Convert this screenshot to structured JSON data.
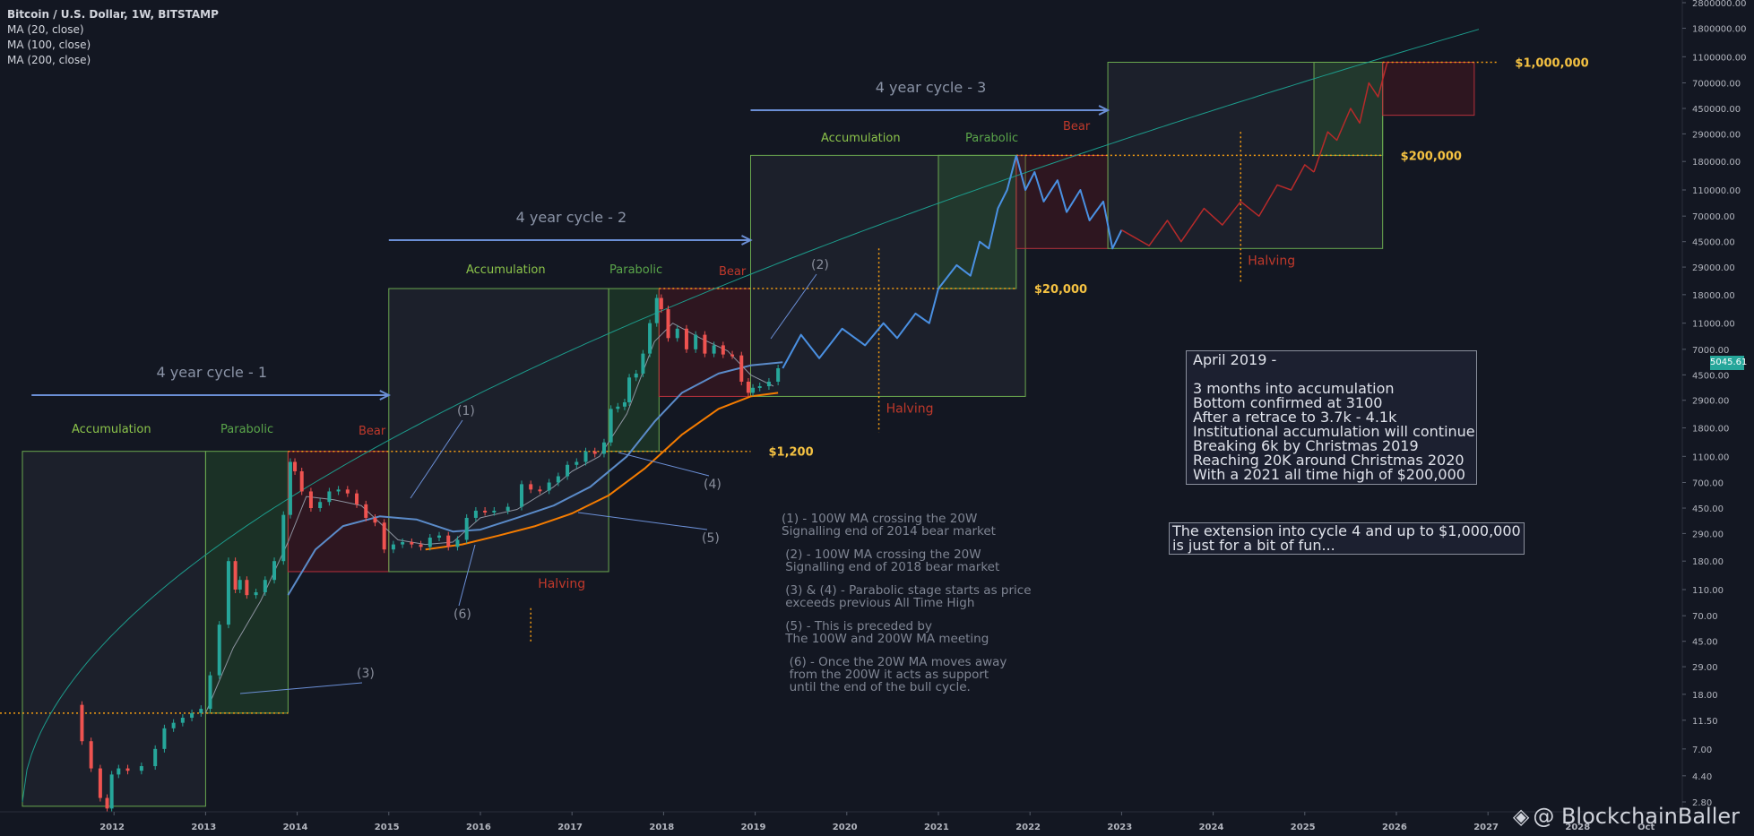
{
  "legend": {
    "title": "Bitcoin / U.S. Dollar, 1W, BITSTAMP",
    "ma20": "MA (20, close)",
    "ma100": "MA (100, close)",
    "ma200": "MA (200, close)"
  },
  "current_price": "5045.61",
  "notes": [
    "(1) - 100W MA crossing the 20W\nSignalling end of 2014 bear market",
    " (2) - 100W MA crossing the 20W\n Signalling end of 2018 bear market",
    " (3) & (4) - Parabolic stage starts as price\n exceeds previous All Time High",
    " (5) - This is preceded by\n The 100W and 200W MA meeting",
    "  (6) - Once the 20W MA moves away\n  from the 200W it acts as support\n  until the end of the bull cycle."
  ],
  "box_forecast": [
    "April 2019 -",
    "",
    "3 months into accumulation",
    "Bottom confirmed at 3100",
    "After a retrace to 3.7k - 4.1k",
    "Institutional accumulation will continue",
    "Breaking 6k by Christmas 2019",
    "Reaching 20K around Christmas 2020",
    "With a 2021 all time high of $200,000"
  ],
  "box_extension": [
    "The extension into cycle 4 and up to $1,000,000",
    "is just for a bit of fun..."
  ],
  "watermark": "@ BlockchainBaller",
  "chart_data": {
    "type": "line",
    "x_ticks": [
      "2012",
      "2013",
      "2014",
      "2015",
      "2016",
      "2017",
      "2018",
      "2019",
      "2020",
      "2021",
      "2022",
      "2023",
      "2024",
      "2025",
      "2026",
      "2027",
      "2028",
      "Oct"
    ],
    "y_ticks": [
      "2800000.00",
      "1800000.00",
      "1100000.00",
      "700000.00",
      "450000.00",
      "290000.00",
      "180000.00",
      "110000.00",
      "70000.00",
      "45000.00",
      "29000.00",
      "18000.00",
      "11000.00",
      "7000.00",
      "4500.00",
      "2900.00",
      "1800.00",
      "1100.00",
      "700.00",
      "450.00",
      "290.00",
      "180.00",
      "110.00",
      "70.00",
      "45.00",
      "29.00",
      "18.00",
      "11.50",
      "7.00",
      "4.40",
      "2.80"
    ],
    "y_scale": "log",
    "price_levels": [
      {
        "label": "$1,200",
        "value": 1200,
        "color": "#f5c242"
      },
      {
        "label": "$20,000",
        "value": 20000,
        "color": "#f5c242"
      },
      {
        "label": "$200,000",
        "value": 200000,
        "color": "#f5c242"
      },
      {
        "label": "$1,000,000",
        "value": 1000000,
        "color": "#f5c242"
      }
    ],
    "cycles": [
      {
        "label": "4 year cycle - 1"
      },
      {
        "label": "4 year cycle - 2"
      },
      {
        "label": "4 year cycle - 3"
      }
    ],
    "phase_labels": {
      "accumulation": "Accumulation",
      "parabolic": "Parabolic",
      "bear": "Bear",
      "halving": "Halving"
    },
    "markers": [
      "(1)",
      "(2)",
      "(3)",
      "(4)",
      "(5)",
      "(6)"
    ],
    "history": [
      [
        "2011.6",
        15
      ],
      [
        "2011.7",
        8
      ],
      [
        "2011.8",
        5
      ],
      [
        "2011.9",
        3
      ],
      [
        "2011.95",
        2.5
      ],
      [
        "2012.0",
        4.5
      ],
      [
        "2012.1",
        5
      ],
      [
        "2012.2",
        4.8
      ],
      [
        "2012.4",
        5.2
      ],
      [
        "2012.5",
        7
      ],
      [
        "2012.6",
        10
      ],
      [
        "2012.7",
        11
      ],
      [
        "2012.8",
        12
      ],
      [
        "2012.9",
        13
      ],
      [
        "2013.0",
        14
      ],
      [
        "2013.1",
        25
      ],
      [
        "2013.2",
        60
      ],
      [
        "2013.3",
        180
      ],
      [
        "2013.35",
        110
      ],
      [
        "2013.4",
        130
      ],
      [
        "2013.5",
        100
      ],
      [
        "2013.6",
        105
      ],
      [
        "2013.7",
        130
      ],
      [
        "2013.8",
        180
      ],
      [
        "2013.9",
        400
      ],
      [
        "2013.95",
        1000
      ],
      [
        "2014.0",
        850
      ],
      [
        "2014.1",
        600
      ],
      [
        "2014.2",
        450
      ],
      [
        "2014.3",
        500
      ],
      [
        "2014.4",
        600
      ],
      [
        "2014.5",
        620
      ],
      [
        "2014.6",
        580
      ],
      [
        "2014.7",
        480
      ],
      [
        "2014.8",
        380
      ],
      [
        "2014.9",
        350
      ],
      [
        "2015.0",
        220
      ],
      [
        "2015.1",
        240
      ],
      [
        "2015.2",
        250
      ],
      [
        "2015.3",
        240
      ],
      [
        "2015.4",
        230
      ],
      [
        "2015.5",
        270
      ],
      [
        "2015.6",
        280
      ],
      [
        "2015.7",
        230
      ],
      [
        "2015.8",
        260
      ],
      [
        "2015.9",
        380
      ],
      [
        "2016.0",
        430
      ],
      [
        "2016.1",
        420
      ],
      [
        "2016.2",
        430
      ],
      [
        "2016.4",
        460
      ],
      [
        "2016.5",
        680
      ],
      [
        "2016.6",
        620
      ],
      [
        "2016.7",
        610
      ],
      [
        "2016.8",
        700
      ],
      [
        "2016.9",
        780
      ],
      [
        "2017.0",
        950
      ],
      [
        "2017.1",
        1000
      ],
      [
        "2017.2",
        1200
      ],
      [
        "2017.3",
        1150
      ],
      [
        "2017.4",
        1400
      ],
      [
        "2017.45",
        2500
      ],
      [
        "2017.55",
        2600
      ],
      [
        "2017.6",
        2800
      ],
      [
        "2017.65",
        4300
      ],
      [
        "2017.75",
        4600
      ],
      [
        "2017.8",
        6500
      ],
      [
        "2017.9",
        11000
      ],
      [
        "2017.95",
        17000
      ],
      [
        "2018.0",
        14000
      ],
      [
        "2018.1",
        8500
      ],
      [
        "2018.2",
        10000
      ],
      [
        "2018.3",
        7000
      ],
      [
        "2018.4",
        9000
      ],
      [
        "2018.5",
        6500
      ],
      [
        "2018.6",
        7500
      ],
      [
        "2018.7",
        6400
      ],
      [
        "2018.8",
        6300
      ],
      [
        "2018.9",
        4000
      ],
      [
        "2018.95",
        3300
      ],
      [
        "2019.0",
        3600
      ],
      [
        "2019.1",
        3700
      ],
      [
        "2019.2",
        4000
      ],
      [
        "2019.3",
        5045
      ]
    ],
    "projection_cycle3": [
      [
        "2019.3",
        5045
      ],
      [
        "2019.5",
        9000
      ],
      [
        "2019.7",
        6000
      ],
      [
        "2019.95",
        10000
      ],
      [
        "2020.2",
        7500
      ],
      [
        "2020.4",
        11000
      ],
      [
        "2020.55",
        8500
      ],
      [
        "2020.75",
        13000
      ],
      [
        "2020.9",
        11000
      ],
      [
        "2021.0",
        20000
      ],
      [
        "2021.2",
        30000
      ],
      [
        "2021.35",
        25000
      ],
      [
        "2021.45",
        45000
      ],
      [
        "2021.55",
        40000
      ],
      [
        "2021.65",
        80000
      ],
      [
        "2021.75",
        110000
      ],
      [
        "2021.85",
        200000
      ]
    ],
    "projection_bear3": [
      [
        "2021.85",
        200000
      ],
      [
        "2021.95",
        110000
      ],
      [
        "2022.05",
        150000
      ],
      [
        "2022.15",
        90000
      ],
      [
        "2022.3",
        130000
      ],
      [
        "2022.4",
        75000
      ],
      [
        "2022.55",
        110000
      ],
      [
        "2022.65",
        65000
      ],
      [
        "2022.8",
        90000
      ],
      [
        "2022.9",
        40000
      ],
      [
        "2023.0",
        55000
      ]
    ],
    "projection_cycle4_acc": [
      [
        "2023.0",
        55000
      ],
      [
        "2023.3",
        42000
      ],
      [
        "2023.5",
        65000
      ],
      [
        "2023.65",
        45000
      ],
      [
        "2023.9",
        80000
      ],
      [
        "2024.1",
        60000
      ],
      [
        "2024.3",
        90000
      ],
      [
        "2024.5",
        70000
      ],
      [
        "2024.7",
        120000
      ],
      [
        "2024.85",
        110000
      ],
      [
        "2025.0",
        170000
      ],
      [
        "2025.1",
        150000
      ]
    ],
    "projection_cycle4_par": [
      [
        "2025.1",
        150000
      ],
      [
        "2025.25",
        300000
      ],
      [
        "2025.35",
        260000
      ],
      [
        "2025.5",
        450000
      ],
      [
        "2025.6",
        350000
      ],
      [
        "2025.7",
        700000
      ],
      [
        "2025.8",
        550000
      ],
      [
        "2025.9",
        1000000
      ]
    ],
    "ma20": [
      [
        "2013.0",
        13
      ],
      [
        "2013.3",
        40
      ],
      [
        "2013.6",
        90
      ],
      [
        "2013.9",
        250
      ],
      [
        "2014.1",
        550
      ],
      [
        "2014.4",
        520
      ],
      [
        "2014.7",
        470
      ],
      [
        "2014.9",
        350
      ],
      [
        "2015.1",
        260
      ],
      [
        "2015.4",
        240
      ],
      [
        "2015.7",
        250
      ],
      [
        "2016.0",
        380
      ],
      [
        "2016.4",
        440
      ],
      [
        "2016.8",
        650
      ],
      [
        "2017.0",
        850
      ],
      [
        "2017.3",
        1100
      ],
      [
        "2017.6",
        2300
      ],
      [
        "2017.9",
        8000
      ],
      [
        "2018.1",
        11000
      ],
      [
        "2018.4",
        8500
      ],
      [
        "2018.7",
        6800
      ],
      [
        "2018.95",
        4500
      ],
      [
        "2019.2",
        3700
      ]
    ],
    "ma100": [
      [
        "2013.9",
        100
      ],
      [
        "2014.2",
        220
      ],
      [
        "2014.5",
        330
      ],
      [
        "2014.9",
        390
      ],
      [
        "2015.3",
        370
      ],
      [
        "2015.7",
        300
      ],
      [
        "2016.0",
        310
      ],
      [
        "2016.4",
        380
      ],
      [
        "2016.8",
        470
      ],
      [
        "2017.2",
        650
      ],
      [
        "2017.6",
        1100
      ],
      [
        "2017.9",
        2000
      ],
      [
        "2018.2",
        3300
      ],
      [
        "2018.6",
        4600
      ],
      [
        "2018.95",
        5300
      ],
      [
        "2019.3",
        5600
      ]
    ],
    "ma200": [
      [
        "2015.4",
        220
      ],
      [
        "2015.8",
        240
      ],
      [
        "2016.2",
        280
      ],
      [
        "2016.6",
        330
      ],
      [
        "2017.0",
        410
      ],
      [
        "2017.4",
        560
      ],
      [
        "2017.8",
        900
      ],
      [
        "2018.2",
        1600
      ],
      [
        "2018.6",
        2500
      ],
      [
        "2018.95",
        3100
      ],
      [
        "2019.25",
        3300
      ]
    ]
  }
}
